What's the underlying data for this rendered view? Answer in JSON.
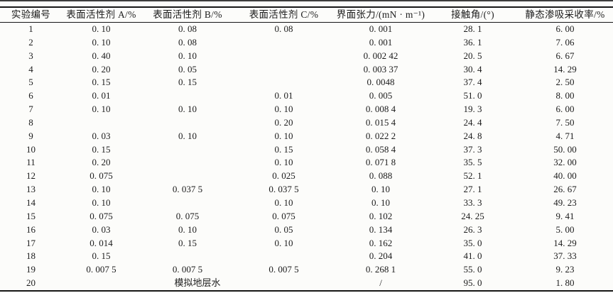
{
  "table": {
    "columns": [
      "实验编号",
      "表面活性剂 A/%",
      "表面活性剂 B/%",
      "表面活性剂 C/%",
      "界面张力/(mN · m⁻¹)",
      "接触角/(°)",
      "静态渗吸采收率/%"
    ],
    "rows": [
      [
        "1",
        "0. 10",
        "0. 08",
        "0. 08",
        "0. 001",
        "28. 1",
        "6. 00"
      ],
      [
        "2",
        "0. 10",
        "0. 08",
        "",
        "0. 001",
        "36. 1",
        "7. 06"
      ],
      [
        "3",
        "0. 40",
        "0. 10",
        "",
        "0. 002 42",
        "20. 5",
        "6. 67"
      ],
      [
        "4",
        "0. 20",
        "0. 05",
        "",
        "0. 003 37",
        "30. 4",
        "14. 29"
      ],
      [
        "5",
        "0. 15",
        "0. 15",
        "",
        "0. 0048",
        "37. 4",
        "2. 50"
      ],
      [
        "6",
        "0. 01",
        "",
        "0. 01",
        "0. 005",
        "51. 0",
        "8. 00"
      ],
      [
        "7",
        "0. 10",
        "0. 10",
        "0. 10",
        "0. 008 4",
        "19. 3",
        "6. 00"
      ],
      [
        "8",
        "",
        "",
        "0. 20",
        "0. 015 4",
        "24. 4",
        "7. 50"
      ],
      [
        "9",
        "0. 03",
        "0. 10",
        "0. 10",
        "0. 022 2",
        "24. 8",
        "4. 71"
      ],
      [
        "10",
        "0. 15",
        "",
        "0. 15",
        "0. 058 4",
        "37. 3",
        "50. 00"
      ],
      [
        "11",
        "0. 20",
        "",
        "0. 10",
        "0. 071 8",
        "35. 5",
        "32. 00"
      ],
      [
        "12",
        "0. 075",
        "",
        "0. 025",
        "0. 088",
        "52. 1",
        "40. 00"
      ],
      [
        "13",
        "0. 10",
        "0. 037 5",
        "0. 037 5",
        "0. 10",
        "27. 1",
        "26. 67"
      ],
      [
        "14",
        "0. 10",
        "",
        "0. 10",
        "0. 10",
        "33. 3",
        "49. 23"
      ],
      [
        "15",
        "0. 075",
        "0. 075",
        "0. 075",
        "0. 102",
        "24. 25",
        "9. 41"
      ],
      [
        "16",
        "0. 03",
        "0. 10",
        "0. 05",
        "0. 134",
        "26. 3",
        "5. 00"
      ],
      [
        "17",
        "0. 014",
        "0. 15",
        "0. 10",
        "0. 162",
        "35. 0",
        "14. 29"
      ],
      [
        "18",
        "0. 15",
        "",
        "",
        "0. 204",
        "41. 0",
        "37. 33"
      ],
      [
        "19",
        "0. 007 5",
        "0. 007 5",
        "0. 007 5",
        "0. 268 1",
        "55. 0",
        "9. 23"
      ]
    ],
    "last_row": {
      "id": "20",
      "merged_label": "模拟地层水",
      "tension": "/",
      "contact_angle": "95. 0",
      "recovery": "1. 80"
    }
  }
}
